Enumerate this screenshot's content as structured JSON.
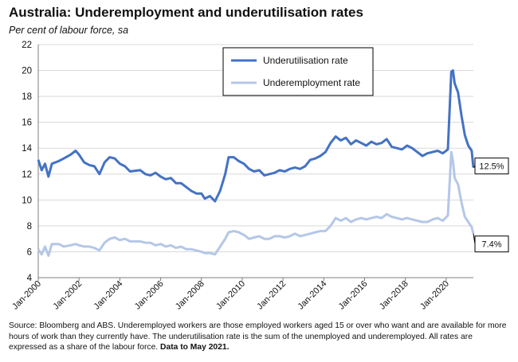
{
  "header": {
    "title": "Australia: Underemployment and underutilisation rates",
    "subtitle": "Per cent of labour force, sa"
  },
  "footer": {
    "source": "Source: Bloomberg and ABS. Underemployed workers are those employed workers aged 15 or over who want and are available for more hours of work than they currently have. The underutilisation rate is the sum of the unemployed and underemployed. All rates are expressed as a share of the labour force.",
    "data_note": "Data to May 2021."
  },
  "colors": {
    "underutilisation": "#4472c4",
    "underemployment": "#b4c7e7",
    "axis": "#7f7f7f",
    "grid": "#d9d9d9"
  },
  "chart_data": {
    "type": "line",
    "title": "Australia: Underemployment and underutilisation rates",
    "ylabel": "Per cent of labour force, sa",
    "ylim": [
      4,
      22
    ],
    "yticks": [
      4,
      6,
      8,
      10,
      12,
      14,
      16,
      18,
      20,
      22
    ],
    "xlim": [
      "2000-01",
      "2021-05"
    ],
    "xticks": [
      "Jan-2000",
      "Jan-2002",
      "Jan-2004",
      "Jan-2006",
      "Jan-2008",
      "Jan-2010",
      "Jan-2012",
      "Jan-2014",
      "Jan-2016",
      "Jan-2018",
      "Jan-2020"
    ],
    "grid": "horizontal",
    "legend_position": "top-right",
    "end_labels": [
      "12.5%",
      "7.4%"
    ],
    "series": [
      {
        "name": "Underutilisation rate",
        "points": [
          [
            "2000-01",
            13.1
          ],
          [
            "2000-03",
            12.3
          ],
          [
            "2000-05",
            12.8
          ],
          [
            "2000-07",
            11.8
          ],
          [
            "2000-09",
            12.8
          ],
          [
            "2001-01",
            13.0
          ],
          [
            "2001-04",
            13.2
          ],
          [
            "2001-08",
            13.5
          ],
          [
            "2001-11",
            13.8
          ],
          [
            "2002-01",
            13.5
          ],
          [
            "2002-04",
            12.9
          ],
          [
            "2002-07",
            12.7
          ],
          [
            "2002-10",
            12.6
          ],
          [
            "2003-01",
            12.0
          ],
          [
            "2003-04",
            12.9
          ],
          [
            "2003-07",
            13.3
          ],
          [
            "2003-10",
            13.2
          ],
          [
            "2004-01",
            12.8
          ],
          [
            "2004-04",
            12.6
          ],
          [
            "2004-07",
            12.2
          ],
          [
            "2005-01",
            12.3
          ],
          [
            "2005-04",
            12.0
          ],
          [
            "2005-07",
            11.9
          ],
          [
            "2005-10",
            12.1
          ],
          [
            "2006-01",
            11.8
          ],
          [
            "2006-04",
            11.6
          ],
          [
            "2006-07",
            11.7
          ],
          [
            "2006-10",
            11.3
          ],
          [
            "2007-01",
            11.3
          ],
          [
            "2007-04",
            11.0
          ],
          [
            "2007-07",
            10.7
          ],
          [
            "2007-10",
            10.5
          ],
          [
            "2008-01",
            10.5
          ],
          [
            "2008-03",
            10.1
          ],
          [
            "2008-06",
            10.3
          ],
          [
            "2008-09",
            9.9
          ],
          [
            "2008-12",
            10.7
          ],
          [
            "2009-03",
            12.0
          ],
          [
            "2009-05",
            13.3
          ],
          [
            "2009-08",
            13.3
          ],
          [
            "2009-11",
            13.0
          ],
          [
            "2010-02",
            12.8
          ],
          [
            "2010-05",
            12.4
          ],
          [
            "2010-08",
            12.2
          ],
          [
            "2010-11",
            12.3
          ],
          [
            "2011-02",
            11.9
          ],
          [
            "2011-05",
            12.0
          ],
          [
            "2011-08",
            12.1
          ],
          [
            "2011-11",
            12.3
          ],
          [
            "2012-02",
            12.2
          ],
          [
            "2012-05",
            12.4
          ],
          [
            "2012-08",
            12.5
          ],
          [
            "2012-11",
            12.4
          ],
          [
            "2013-02",
            12.6
          ],
          [
            "2013-05",
            13.1
          ],
          [
            "2013-08",
            13.2
          ],
          [
            "2013-11",
            13.4
          ],
          [
            "2014-02",
            13.7
          ],
          [
            "2014-05",
            14.4
          ],
          [
            "2014-08",
            14.9
          ],
          [
            "2014-11",
            14.6
          ],
          [
            "2015-02",
            14.8
          ],
          [
            "2015-05",
            14.3
          ],
          [
            "2015-08",
            14.6
          ],
          [
            "2015-11",
            14.4
          ],
          [
            "2016-02",
            14.2
          ],
          [
            "2016-05",
            14.5
          ],
          [
            "2016-08",
            14.3
          ],
          [
            "2016-11",
            14.4
          ],
          [
            "2017-02",
            14.7
          ],
          [
            "2017-05",
            14.1
          ],
          [
            "2017-08",
            14.0
          ],
          [
            "2017-11",
            13.9
          ],
          [
            "2018-02",
            14.2
          ],
          [
            "2018-05",
            14.0
          ],
          [
            "2018-08",
            13.7
          ],
          [
            "2018-11",
            13.4
          ],
          [
            "2019-02",
            13.6
          ],
          [
            "2019-05",
            13.7
          ],
          [
            "2019-08",
            13.8
          ],
          [
            "2019-11",
            13.6
          ],
          [
            "2020-02",
            13.9
          ],
          [
            "2020-04",
            19.9
          ],
          [
            "2020-05",
            20.0
          ],
          [
            "2020-06",
            19.0
          ],
          [
            "2020-08",
            18.3
          ],
          [
            "2020-10",
            16.5
          ],
          [
            "2020-12",
            15.0
          ],
          [
            "2021-02",
            14.2
          ],
          [
            "2021-04",
            13.8
          ],
          [
            "2021-05",
            12.5
          ]
        ]
      },
      {
        "name": "Underemployment rate",
        "points": [
          [
            "2000-01",
            6.2
          ],
          [
            "2000-03",
            5.8
          ],
          [
            "2000-05",
            6.4
          ],
          [
            "2000-07",
            5.7
          ],
          [
            "2000-09",
            6.6
          ],
          [
            "2001-01",
            6.6
          ],
          [
            "2001-04",
            6.4
          ],
          [
            "2001-08",
            6.5
          ],
          [
            "2001-11",
            6.6
          ],
          [
            "2002-01",
            6.5
          ],
          [
            "2002-04",
            6.4
          ],
          [
            "2002-07",
            6.4
          ],
          [
            "2002-10",
            6.3
          ],
          [
            "2003-01",
            6.1
          ],
          [
            "2003-04",
            6.7
          ],
          [
            "2003-07",
            7.0
          ],
          [
            "2003-10",
            7.1
          ],
          [
            "2004-01",
            6.9
          ],
          [
            "2004-04",
            7.0
          ],
          [
            "2004-07",
            6.8
          ],
          [
            "2005-01",
            6.8
          ],
          [
            "2005-04",
            6.7
          ],
          [
            "2005-07",
            6.7
          ],
          [
            "2005-10",
            6.5
          ],
          [
            "2006-01",
            6.6
          ],
          [
            "2006-04",
            6.4
          ],
          [
            "2006-07",
            6.5
          ],
          [
            "2006-10",
            6.3
          ],
          [
            "2007-01",
            6.4
          ],
          [
            "2007-04",
            6.2
          ],
          [
            "2007-07",
            6.2
          ],
          [
            "2007-10",
            6.1
          ],
          [
            "2008-01",
            6.0
          ],
          [
            "2008-03",
            5.9
          ],
          [
            "2008-06",
            5.9
          ],
          [
            "2008-09",
            5.8
          ],
          [
            "2008-12",
            6.4
          ],
          [
            "2009-03",
            7.0
          ],
          [
            "2009-05",
            7.5
          ],
          [
            "2009-08",
            7.6
          ],
          [
            "2009-11",
            7.5
          ],
          [
            "2010-02",
            7.3
          ],
          [
            "2010-05",
            7.0
          ],
          [
            "2010-08",
            7.1
          ],
          [
            "2010-11",
            7.2
          ],
          [
            "2011-02",
            7.0
          ],
          [
            "2011-05",
            7.0
          ],
          [
            "2011-08",
            7.2
          ],
          [
            "2011-11",
            7.2
          ],
          [
            "2012-02",
            7.1
          ],
          [
            "2012-05",
            7.2
          ],
          [
            "2012-08",
            7.4
          ],
          [
            "2012-11",
            7.2
          ],
          [
            "2013-02",
            7.3
          ],
          [
            "2013-05",
            7.4
          ],
          [
            "2013-08",
            7.5
          ],
          [
            "2013-11",
            7.6
          ],
          [
            "2014-02",
            7.6
          ],
          [
            "2014-05",
            8.0
          ],
          [
            "2014-08",
            8.6
          ],
          [
            "2014-11",
            8.4
          ],
          [
            "2015-02",
            8.6
          ],
          [
            "2015-05",
            8.3
          ],
          [
            "2015-08",
            8.5
          ],
          [
            "2015-11",
            8.6
          ],
          [
            "2016-02",
            8.5
          ],
          [
            "2016-05",
            8.6
          ],
          [
            "2016-08",
            8.7
          ],
          [
            "2016-11",
            8.6
          ],
          [
            "2017-02",
            8.9
          ],
          [
            "2017-05",
            8.7
          ],
          [
            "2017-08",
            8.6
          ],
          [
            "2017-11",
            8.5
          ],
          [
            "2018-02",
            8.6
          ],
          [
            "2018-05",
            8.5
          ],
          [
            "2018-08",
            8.4
          ],
          [
            "2018-11",
            8.3
          ],
          [
            "2019-02",
            8.3
          ],
          [
            "2019-05",
            8.5
          ],
          [
            "2019-08",
            8.6
          ],
          [
            "2019-11",
            8.4
          ],
          [
            "2020-02",
            8.8
          ],
          [
            "2020-04",
            13.7
          ],
          [
            "2020-05",
            13.0
          ],
          [
            "2020-06",
            11.7
          ],
          [
            "2020-08",
            11.2
          ],
          [
            "2020-10",
            9.8
          ],
          [
            "2020-12",
            8.7
          ],
          [
            "2021-02",
            8.3
          ],
          [
            "2021-04",
            7.9
          ],
          [
            "2021-05",
            7.4
          ]
        ]
      }
    ]
  }
}
